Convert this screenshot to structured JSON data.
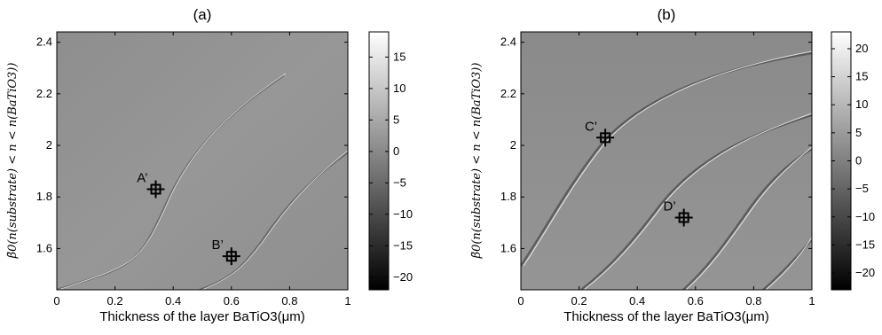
{
  "chart_data": [
    {
      "type": "heatmap",
      "title": "(a)",
      "xlabel": "Thickness of the layer BaTiO3(μm)",
      "ylabel": "β̃0(n(substrate) < n < n(BaTiO3))",
      "xlim": [
        0,
        1
      ],
      "ylim": [
        1.44,
        2.44
      ],
      "xticks": [
        0,
        0.2,
        0.4,
        0.6,
        0.8,
        1
      ],
      "xtick_labels": [
        "0",
        "0.2",
        "0.4",
        "0.6",
        "0.8",
        "1"
      ],
      "yticks": [
        1.6,
        1.8,
        2.0,
        2.2,
        2.4
      ],
      "ytick_labels": [
        "1.6",
        "1.8",
        "2",
        "2.2",
        "2.4"
      ],
      "colorbar": {
        "range": [
          -22,
          19
        ],
        "ticks": [
          15,
          10,
          5,
          0,
          -5,
          -10,
          -15,
          -20
        ],
        "tick_labels": [
          "15",
          "10",
          "5",
          "0",
          "−5",
          "−10",
          "−15",
          "−20"
        ]
      },
      "annotations": [
        {
          "label": "A’",
          "x": 0.34,
          "y": 1.83
        },
        {
          "label": "B’",
          "x": 0.6,
          "y": 1.57
        }
      ]
    },
    {
      "type": "heatmap",
      "title": "(b)",
      "xlabel": "Thickness of the layer BaTiO3(μm)",
      "ylabel": "β̃0(n(substrate) < n < n(BaTiO3))",
      "xlim": [
        0,
        1
      ],
      "ylim": [
        1.44,
        2.44
      ],
      "xticks": [
        0,
        0.2,
        0.4,
        0.6,
        0.8,
        1
      ],
      "xtick_labels": [
        "0",
        "0.2",
        "0.4",
        "0.6",
        "0.8",
        "1"
      ],
      "yticks": [
        1.6,
        1.8,
        2.0,
        2.2,
        2.4
      ],
      "ytick_labels": [
        "1.6",
        "1.8",
        "2",
        "2.2",
        "2.4"
      ],
      "colorbar": {
        "range": [
          -23,
          23
        ],
        "ticks": [
          20,
          15,
          10,
          5,
          0,
          -5,
          -10,
          -15,
          -20
        ],
        "tick_labels": [
          "20",
          "15",
          "10",
          "5",
          "0",
          "−5",
          "−10",
          "−15",
          "−20"
        ]
      },
      "annotations": [
        {
          "label": "C’",
          "x": 0.29,
          "y": 2.03
        },
        {
          "label": "D’",
          "x": 0.56,
          "y": 1.72
        }
      ]
    }
  ]
}
